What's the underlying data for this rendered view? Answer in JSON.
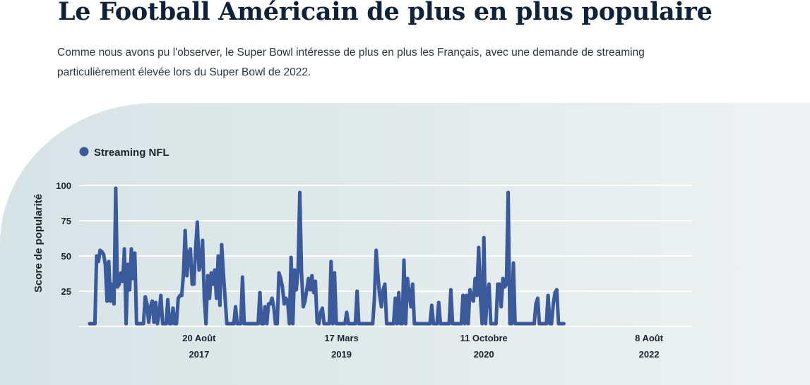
{
  "header": {
    "title": "Le Football Américain de plus en plus populaire",
    "intro": "Comme nous avons pu l'observer, le Super Bowl intéresse de plus en plus les Français, avec une demande de streaming particulièrement élevée lors du Super Bowl de 2022."
  },
  "chart_data": {
    "type": "line",
    "ylabel": "Score de popularité",
    "ylim": [
      0,
      100
    ],
    "yticks": [
      "25",
      "50",
      "75",
      "100"
    ],
    "grid": true,
    "legend_position": "top-left",
    "x_range": [
      "2016-06-05",
      "2022-12-11"
    ],
    "xticks": [
      {
        "date": "2017-08-20",
        "line1": "20 Août",
        "line2": "2017"
      },
      {
        "date": "2019-03-17",
        "line1": "17 Mars",
        "line2": "2019"
      },
      {
        "date": "2020-10-11",
        "line1": "11 Octobre",
        "line2": "2020"
      },
      {
        "date": "2022-08-08",
        "line1": "8 Août",
        "line2": "2022"
      }
    ],
    "series": [
      {
        "name": "Streaming NFL",
        "color": "#3a5a9c",
        "points": [
          [
            "2016-06-05",
            2
          ],
          [
            "2016-06-12",
            2
          ],
          [
            "2016-06-19",
            2
          ],
          [
            "2016-06-26",
            2
          ],
          [
            "2016-07-03",
            50
          ],
          [
            "2016-07-10",
            46
          ],
          [
            "2016-07-17",
            54
          ],
          [
            "2016-07-24",
            53
          ],
          [
            "2016-07-31",
            51
          ],
          [
            "2016-08-07",
            44
          ],
          [
            "2016-08-14",
            18
          ],
          [
            "2016-08-21",
            46
          ],
          [
            "2016-08-28",
            18
          ],
          [
            "2016-09-04",
            30
          ],
          [
            "2016-09-11",
            16
          ],
          [
            "2016-09-18",
            98
          ],
          [
            "2016-09-25",
            28
          ],
          [
            "2016-10-02",
            30
          ],
          [
            "2016-10-09",
            38
          ],
          [
            "2016-10-16",
            32
          ],
          [
            "2016-10-23",
            55
          ],
          [
            "2016-10-30",
            2
          ],
          [
            "2016-11-06",
            44
          ],
          [
            "2016-11-13",
            26
          ],
          [
            "2016-11-20",
            55
          ],
          [
            "2016-11-27",
            34
          ],
          [
            "2016-12-04",
            52
          ],
          [
            "2016-12-11",
            2
          ],
          [
            "2016-12-18",
            2
          ],
          [
            "2016-12-25",
            2
          ],
          [
            "2017-01-01",
            2
          ],
          [
            "2017-01-08",
            2
          ],
          [
            "2017-01-15",
            21
          ],
          [
            "2017-01-22",
            16
          ],
          [
            "2017-01-29",
            3
          ],
          [
            "2017-02-05",
            14
          ],
          [
            "2017-02-12",
            18
          ],
          [
            "2017-02-19",
            3
          ],
          [
            "2017-02-26",
            17
          ],
          [
            "2017-03-05",
            2
          ],
          [
            "2017-03-12",
            10
          ],
          [
            "2017-03-19",
            22
          ],
          [
            "2017-03-26",
            2
          ],
          [
            "2017-04-02",
            2
          ],
          [
            "2017-04-09",
            2
          ],
          [
            "2017-04-16",
            19
          ],
          [
            "2017-04-23",
            2
          ],
          [
            "2017-04-30",
            2
          ],
          [
            "2017-05-07",
            13
          ],
          [
            "2017-05-14",
            2
          ],
          [
            "2017-05-21",
            2
          ],
          [
            "2017-05-28",
            20
          ],
          [
            "2017-06-04",
            22
          ],
          [
            "2017-06-11",
            22
          ],
          [
            "2017-06-18",
            37
          ],
          [
            "2017-06-25",
            68
          ],
          [
            "2017-07-02",
            36
          ],
          [
            "2017-07-09",
            52
          ],
          [
            "2017-07-16",
            55
          ],
          [
            "2017-07-23",
            30
          ],
          [
            "2017-07-30",
            30
          ],
          [
            "2017-08-06",
            55
          ],
          [
            "2017-08-13",
            74
          ],
          [
            "2017-08-20",
            40
          ],
          [
            "2017-08-27",
            45
          ],
          [
            "2017-09-03",
            61
          ],
          [
            "2017-09-10",
            20
          ],
          [
            "2017-09-17",
            2
          ],
          [
            "2017-09-24",
            36
          ],
          [
            "2017-10-01",
            20
          ],
          [
            "2017-10-08",
            38
          ],
          [
            "2017-10-15",
            30
          ],
          [
            "2017-10-22",
            40
          ],
          [
            "2017-10-29",
            20
          ],
          [
            "2017-11-05",
            50
          ],
          [
            "2017-11-12",
            15
          ],
          [
            "2017-11-19",
            58
          ],
          [
            "2017-11-26",
            38
          ],
          [
            "2017-12-03",
            20
          ],
          [
            "2017-12-10",
            2
          ],
          [
            "2017-12-17",
            2
          ],
          [
            "2017-12-24",
            2
          ],
          [
            "2017-12-31",
            2
          ],
          [
            "2018-01-07",
            2
          ],
          [
            "2018-01-14",
            14
          ],
          [
            "2018-01-21",
            2
          ],
          [
            "2018-01-28",
            2
          ],
          [
            "2018-02-04",
            2
          ],
          [
            "2018-02-11",
            35
          ],
          [
            "2018-02-18",
            2
          ],
          [
            "2018-02-25",
            2
          ],
          [
            "2018-03-04",
            2
          ],
          [
            "2018-03-11",
            2
          ],
          [
            "2018-03-18",
            2
          ],
          [
            "2018-03-25",
            2
          ],
          [
            "2018-04-01",
            2
          ],
          [
            "2018-04-08",
            2
          ],
          [
            "2018-04-15",
            2
          ],
          [
            "2018-04-22",
            24
          ],
          [
            "2018-04-29",
            2
          ],
          [
            "2018-05-06",
            2
          ],
          [
            "2018-05-13",
            14
          ],
          [
            "2018-05-20",
            2
          ],
          [
            "2018-05-27",
            16
          ],
          [
            "2018-06-03",
            16
          ],
          [
            "2018-06-10",
            20
          ],
          [
            "2018-06-17",
            14
          ],
          [
            "2018-06-24",
            2
          ],
          [
            "2018-07-01",
            2
          ],
          [
            "2018-07-08",
            38
          ],
          [
            "2018-07-15",
            34
          ],
          [
            "2018-07-22",
            28
          ],
          [
            "2018-07-29",
            16
          ],
          [
            "2018-08-05",
            20
          ],
          [
            "2018-08-12",
            18
          ],
          [
            "2018-08-19",
            2
          ],
          [
            "2018-08-26",
            49
          ],
          [
            "2018-09-02",
            2
          ],
          [
            "2018-09-09",
            40
          ],
          [
            "2018-09-16",
            26
          ],
          [
            "2018-09-23",
            40
          ],
          [
            "2018-09-30",
            95
          ],
          [
            "2018-10-07",
            38
          ],
          [
            "2018-10-14",
            14
          ],
          [
            "2018-10-21",
            18
          ],
          [
            "2018-10-28",
            26
          ],
          [
            "2018-11-04",
            34
          ],
          [
            "2018-11-11",
            26
          ],
          [
            "2018-11-18",
            36
          ],
          [
            "2018-11-25",
            24
          ],
          [
            "2018-12-02",
            32
          ],
          [
            "2018-12-09",
            3
          ],
          [
            "2018-12-16",
            2
          ],
          [
            "2018-12-23",
            10
          ],
          [
            "2018-12-30",
            13
          ],
          [
            "2019-01-06",
            2
          ],
          [
            "2019-01-13",
            2
          ],
          [
            "2019-01-20",
            2
          ],
          [
            "2019-01-27",
            2
          ],
          [
            "2019-02-03",
            46
          ],
          [
            "2019-02-10",
            2
          ],
          [
            "2019-02-17",
            38
          ],
          [
            "2019-02-24",
            2
          ],
          [
            "2019-03-03",
            2
          ],
          [
            "2019-03-10",
            2
          ],
          [
            "2019-03-17",
            2
          ],
          [
            "2019-03-24",
            2
          ],
          [
            "2019-03-31",
            2
          ],
          [
            "2019-04-07",
            10
          ],
          [
            "2019-04-14",
            2
          ],
          [
            "2019-04-21",
            2
          ],
          [
            "2019-04-28",
            2
          ],
          [
            "2019-05-05",
            2
          ],
          [
            "2019-05-12",
            2
          ],
          [
            "2019-05-19",
            25
          ],
          [
            "2019-05-26",
            2
          ],
          [
            "2019-06-02",
            2
          ],
          [
            "2019-06-09",
            2
          ],
          [
            "2019-06-16",
            2
          ],
          [
            "2019-06-23",
            2
          ],
          [
            "2019-06-30",
            2
          ],
          [
            "2019-07-07",
            2
          ],
          [
            "2019-07-14",
            2
          ],
          [
            "2019-07-21",
            2
          ],
          [
            "2019-07-28",
            20
          ],
          [
            "2019-08-04",
            54
          ],
          [
            "2019-08-11",
            36
          ],
          [
            "2019-08-18",
            22
          ],
          [
            "2019-08-25",
            14
          ],
          [
            "2019-09-01",
            26
          ],
          [
            "2019-09-08",
            30
          ],
          [
            "2019-09-15",
            2
          ],
          [
            "2019-09-22",
            2
          ],
          [
            "2019-09-29",
            2
          ],
          [
            "2019-10-06",
            2
          ],
          [
            "2019-10-13",
            2
          ],
          [
            "2019-10-20",
            20
          ],
          [
            "2019-10-27",
            2
          ],
          [
            "2019-11-03",
            24
          ],
          [
            "2019-11-10",
            2
          ],
          [
            "2019-11-17",
            2
          ],
          [
            "2019-11-24",
            47
          ],
          [
            "2019-12-01",
            2
          ],
          [
            "2019-12-08",
            34
          ],
          [
            "2019-12-15",
            24
          ],
          [
            "2019-12-22",
            14
          ],
          [
            "2019-12-29",
            30
          ],
          [
            "2020-01-05",
            2
          ],
          [
            "2020-01-12",
            2
          ],
          [
            "2020-01-19",
            2
          ],
          [
            "2020-01-26",
            2
          ],
          [
            "2020-02-02",
            2
          ],
          [
            "2020-02-09",
            2
          ],
          [
            "2020-02-16",
            2
          ],
          [
            "2020-02-23",
            2
          ],
          [
            "2020-03-01",
            2
          ],
          [
            "2020-03-08",
            2
          ],
          [
            "2020-03-15",
            15
          ],
          [
            "2020-03-22",
            2
          ],
          [
            "2020-03-29",
            2
          ],
          [
            "2020-04-05",
            2
          ],
          [
            "2020-04-12",
            17
          ],
          [
            "2020-04-19",
            2
          ],
          [
            "2020-04-26",
            2
          ],
          [
            "2020-05-03",
            2
          ],
          [
            "2020-05-10",
            2
          ],
          [
            "2020-05-17",
            2
          ],
          [
            "2020-05-24",
            2
          ],
          [
            "2020-05-31",
            26
          ],
          [
            "2020-06-07",
            2
          ],
          [
            "2020-06-14",
            2
          ],
          [
            "2020-06-21",
            2
          ],
          [
            "2020-06-28",
            2
          ],
          [
            "2020-07-05",
            2
          ],
          [
            "2020-07-12",
            2
          ],
          [
            "2020-07-19",
            22
          ],
          [
            "2020-07-26",
            2
          ],
          [
            "2020-08-02",
            22
          ],
          [
            "2020-08-09",
            2
          ],
          [
            "2020-08-16",
            26
          ],
          [
            "2020-08-23",
            20
          ],
          [
            "2020-08-30",
            18
          ],
          [
            "2020-09-06",
            34
          ],
          [
            "2020-09-13",
            22
          ],
          [
            "2020-09-20",
            56
          ],
          [
            "2020-09-27",
            22
          ],
          [
            "2020-10-04",
            2
          ],
          [
            "2020-10-11",
            63
          ],
          [
            "2020-10-18",
            2
          ],
          [
            "2020-10-25",
            24
          ],
          [
            "2020-11-01",
            30
          ],
          [
            "2020-11-08",
            2
          ],
          [
            "2020-11-15",
            2
          ],
          [
            "2020-11-22",
            2
          ],
          [
            "2020-11-29",
            2
          ],
          [
            "2020-12-06",
            30
          ],
          [
            "2020-12-13",
            30
          ],
          [
            "2020-12-20",
            14
          ],
          [
            "2020-12-27",
            34
          ],
          [
            "2021-01-03",
            28
          ],
          [
            "2021-01-10",
            30
          ],
          [
            "2021-01-17",
            95
          ],
          [
            "2021-01-24",
            2
          ],
          [
            "2021-01-31",
            2
          ],
          [
            "2021-02-07",
            45
          ],
          [
            "2021-02-14",
            2
          ],
          [
            "2021-02-21",
            2
          ],
          [
            "2021-02-28",
            2
          ],
          [
            "2021-03-07",
            2
          ],
          [
            "2021-03-14",
            2
          ],
          [
            "2021-03-21",
            2
          ],
          [
            "2021-03-28",
            2
          ],
          [
            "2021-04-04",
            2
          ],
          [
            "2021-04-11",
            2
          ],
          [
            "2021-04-18",
            2
          ],
          [
            "2021-04-25",
            2
          ],
          [
            "2021-05-02",
            2
          ],
          [
            "2021-05-09",
            16
          ],
          [
            "2021-05-16",
            20
          ],
          [
            "2021-05-23",
            2
          ],
          [
            "2021-05-30",
            2
          ],
          [
            "2021-06-06",
            2
          ],
          [
            "2021-06-13",
            2
          ],
          [
            "2021-06-20",
            2
          ],
          [
            "2021-06-27",
            22
          ],
          [
            "2021-07-04",
            2
          ],
          [
            "2021-07-11",
            2
          ],
          [
            "2021-07-18",
            16
          ],
          [
            "2021-07-25",
            24
          ],
          [
            "2021-08-01",
            26
          ],
          [
            "2021-08-08",
            2
          ],
          [
            "2021-08-15",
            2
          ],
          [
            "2021-08-22",
            2
          ],
          [
            "2021-08-29",
            2
          ]
        ]
      }
    ]
  }
}
